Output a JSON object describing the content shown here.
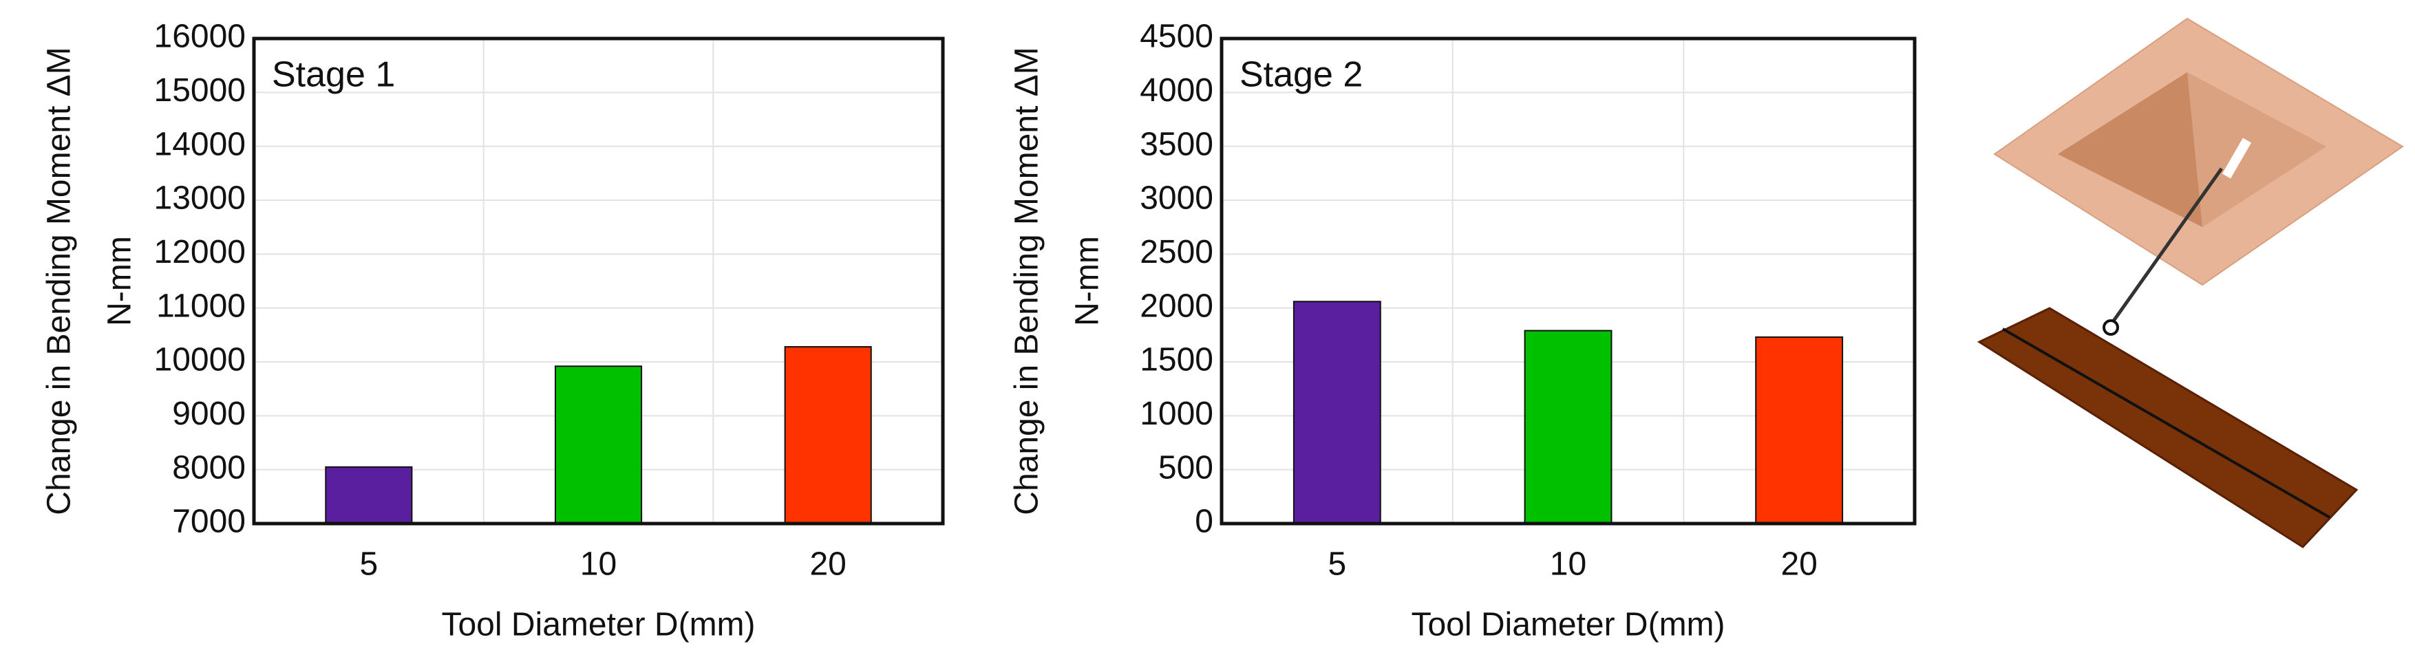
{
  "chart_data": [
    {
      "type": "bar",
      "annotation": "Stage 1",
      "ylabel": [
        "Change in Bending Moment ΔM",
        "N-mm"
      ],
      "xlabel": "Tool Diameter D(mm)",
      "categories": [
        "5",
        "10",
        "20"
      ],
      "values": [
        8050,
        9920,
        10280
      ],
      "colors": [
        "#5a1f9e",
        "#00c000",
        "#ff3300"
      ],
      "ylim": [
        7000,
        16000
      ],
      "yticks": [
        7000,
        8000,
        9000,
        10000,
        11000,
        12000,
        13000,
        14000,
        15000,
        16000
      ],
      "grid": true
    },
    {
      "type": "bar",
      "annotation": "Stage 2",
      "ylabel": [
        "Change in Bending Moment ΔM",
        "N-mm"
      ],
      "xlabel": "Tool Diameter D(mm)",
      "categories": [
        "5",
        "10",
        "20"
      ],
      "values": [
        2060,
        1790,
        1730
      ],
      "colors": [
        "#5a1f9e",
        "#00c000",
        "#ff3300"
      ],
      "ylim": [
        0,
        4500
      ],
      "yticks": [
        0,
        500,
        1000,
        1500,
        2000,
        2500,
        3000,
        3500,
        4000,
        4500
      ],
      "grid": true
    }
  ]
}
